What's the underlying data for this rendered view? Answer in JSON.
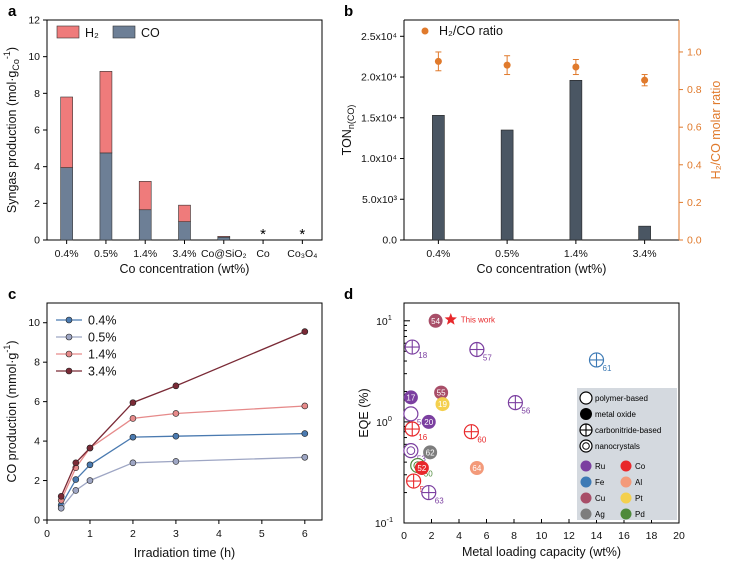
{
  "colors": {
    "h2": "#ef7b7b",
    "co": "#6d7f96",
    "bar_b": "#4a5663",
    "ratio": "#e07a2c",
    "c_lines": [
      "#4a7ab0",
      "#9ea6c4",
      "#e68a8a",
      "#7a2a36"
    ],
    "catalyst_legend_panel": "#d4d9df"
  },
  "chart_data": [
    {
      "panel": "a",
      "type": "bar",
      "stacked": true,
      "categories": [
        "0.4%",
        "0.5%",
        "1.4%",
        "3.4%",
        "Co@SiO2",
        "Co",
        "Co3O4"
      ],
      "category_labels": [
        "0.4%",
        "0.5%",
        "1.4%",
        "3.4%",
        "Co@SiO₂",
        "Co",
        "Co₃O₄"
      ],
      "series": [
        {
          "name": "CO",
          "values": [
            3.95,
            4.75,
            1.65,
            1.0,
            0.15,
            0.0,
            0.0
          ]
        },
        {
          "name": "H2",
          "values": [
            3.85,
            4.45,
            1.55,
            0.9,
            0.05,
            0.0,
            0.0
          ]
        }
      ],
      "legend_labels": [
        "H₂",
        "CO"
      ],
      "star_markers": [
        "Co",
        "Co3O4"
      ],
      "star_symbol": "*",
      "xlabel": "Co concentration (wt%)",
      "ylabel": "Syngas production (mol·g",
      "ylabel_sub": "Co",
      "ylabel_sup": "-1",
      "ylabel_close": ")",
      "ylim": [
        0,
        12
      ],
      "yticks": [
        "0",
        "2",
        "4",
        "6",
        "8",
        "10",
        "12"
      ],
      "legend_position": "top-left"
    },
    {
      "panel": "b",
      "type": "bar",
      "categories": [
        "0.4%",
        "0.5%",
        "1.4%",
        "3.4%"
      ],
      "series": [
        {
          "name": "TON",
          "axis": "left",
          "values": [
            15300,
            13500,
            19600,
            1700
          ]
        },
        {
          "name": "H₂/CO ratio",
          "axis": "right",
          "type": "scatter",
          "values": [
            0.95,
            0.93,
            0.92,
            0.85
          ],
          "errors": [
            0.05,
            0.05,
            0.04,
            0.03
          ]
        }
      ],
      "xlabel": "Co concentration (wt%)",
      "ylabel_left": "TON",
      "ylabel_left_sub": "n(CO)",
      "ylabel_right": "H₂/CO molar ratio",
      "ylim_left": [
        0,
        27000
      ],
      "yticks_left": [
        "0.0",
        "5.0x10³",
        "1.0x10⁴",
        "1.5x10⁴",
        "2.0x10⁴",
        "2.5x10⁴"
      ],
      "ylim_right": [
        0,
        1.17
      ],
      "yticks_right": [
        "0.0",
        "0.2",
        "0.4",
        "0.6",
        "0.8",
        "1.0"
      ],
      "legend_position": "top-left"
    },
    {
      "panel": "c",
      "type": "line",
      "x": [
        0.33,
        0.67,
        1,
        2,
        3,
        6
      ],
      "series": [
        {
          "name": "0.4%",
          "values": [
            0.75,
            2.05,
            2.8,
            4.2,
            4.25,
            4.38
          ]
        },
        {
          "name": "0.5%",
          "values": [
            0.6,
            1.5,
            2.0,
            2.9,
            2.97,
            3.18
          ]
        },
        {
          "name": "1.4%",
          "values": [
            1.0,
            2.65,
            3.65,
            5.15,
            5.4,
            5.78
          ]
        },
        {
          "name": "3.4%",
          "values": [
            1.2,
            2.9,
            3.65,
            5.95,
            6.8,
            9.55
          ]
        }
      ],
      "xlabel": "Irradiation time (h)",
      "ylabel": "CO production (mmol·g",
      "ylabel_sup": "-1",
      "ylabel_close": ")",
      "xlim": [
        0,
        6.4
      ],
      "xticks": [
        "0",
        "1",
        "2",
        "3",
        "4",
        "5",
        "6"
      ],
      "ylim": [
        0,
        11
      ],
      "yticks": [
        "0",
        "2",
        "4",
        "6",
        "8",
        "10"
      ],
      "legend_position": "top-left"
    },
    {
      "panel": "d",
      "type": "scatter",
      "log_y": true,
      "xlabel": "Metal loading capacity (wt%)",
      "ylabel": "EQE (%)",
      "xlim": [
        0,
        20
      ],
      "xticks": [
        "0",
        "2",
        "4",
        "6",
        "8",
        "10",
        "12",
        "14",
        "16",
        "18",
        "20"
      ],
      "ylim": [
        0.1,
        15
      ],
      "ytick_major": [
        {
          "v": 0.1,
          "base": "10",
          "exp": "-1"
        },
        {
          "v": 1,
          "base": "10",
          "exp": "0"
        },
        {
          "v": 10,
          "base": "10",
          "exp": "1"
        }
      ],
      "points": [
        {
          "label": "54",
          "x": 2.3,
          "y": 10.0,
          "type": "metal-oxide",
          "metal": "Cu"
        },
        {
          "label": "18",
          "x": 0.6,
          "y": 5.5,
          "type": "carbonitride-based",
          "metal": "Ru"
        },
        {
          "label": "57",
          "x": 5.3,
          "y": 5.2,
          "type": "carbonitride-based",
          "metal": "Ru"
        },
        {
          "label": "61",
          "x": 14.0,
          "y": 4.1,
          "type": "carbonitride-based",
          "metal": "Fe"
        },
        {
          "label": "17",
          "x": 0.5,
          "y": 1.75,
          "type": "metal-oxide",
          "metal": "Ru"
        },
        {
          "label": "55",
          "x": 2.7,
          "y": 1.95,
          "type": "metal-oxide",
          "metal": "Cu"
        },
        {
          "label": "56",
          "x": 8.1,
          "y": 1.55,
          "type": "carbonitride-based",
          "metal": "Ru"
        },
        {
          "label": "58",
          "x": 0.5,
          "y": 1.2,
          "type": "polymer-based",
          "metal": "Ru"
        },
        {
          "label": "19",
          "x": 2.8,
          "y": 1.5,
          "type": "metal-oxide",
          "metal": "Pt"
        },
        {
          "label": "20",
          "x": 1.8,
          "y": 1.0,
          "type": "metal-oxide",
          "metal": "Ru"
        },
        {
          "label": "16",
          "x": 0.6,
          "y": 0.85,
          "type": "carbonitride-based",
          "metal": "Co"
        },
        {
          "label": "60",
          "x": 4.9,
          "y": 0.8,
          "type": "carbonitride-based",
          "metal": "Co"
        },
        {
          "label": "53",
          "x": 0.5,
          "y": 0.52,
          "type": "nanocrystals",
          "metal": "Ru"
        },
        {
          "label": "62",
          "x": 1.9,
          "y": 0.5,
          "type": "metal-oxide",
          "metal": "Ag"
        },
        {
          "label": "50",
          "x": 1.0,
          "y": 0.37,
          "type": "nanocrystals",
          "metal": "Pd"
        },
        {
          "label": "52",
          "x": 1.3,
          "y": 0.35,
          "type": "metal-oxide",
          "metal": "Co"
        },
        {
          "label": "64",
          "x": 5.3,
          "y": 0.35,
          "type": "metal-oxide",
          "metal": "Al"
        },
        {
          "label": "59",
          "x": 0.7,
          "y": 0.26,
          "type": "carbonitride-based",
          "metal": "Co"
        },
        {
          "label": "63",
          "x": 1.8,
          "y": 0.2,
          "type": "carbonitride-based",
          "metal": "Ru"
        }
      ],
      "this_work": {
        "label": "This work",
        "x": 3.4,
        "y": 10.3
      },
      "type_legend": [
        "polymer-based",
        "metal oxide",
        "carbonitride-based",
        "nanocrystals"
      ],
      "metal_legend": [
        {
          "name": "Ru",
          "color": "#7b3fa0"
        },
        {
          "name": "Co",
          "color": "#e8282b"
        },
        {
          "name": "Fe",
          "color": "#3d7ab5"
        },
        {
          "name": "Al",
          "color": "#f39a7a"
        },
        {
          "name": "Cu",
          "color": "#a84e68"
        },
        {
          "name": "Pt",
          "color": "#f4d04e"
        },
        {
          "name": "Ag",
          "color": "#7d7d7d"
        },
        {
          "name": "Pd",
          "color": "#4e8a3a"
        }
      ],
      "legend_position": "right"
    }
  ],
  "panels": {
    "a": "a",
    "b": "b",
    "c": "c",
    "d": "d"
  }
}
